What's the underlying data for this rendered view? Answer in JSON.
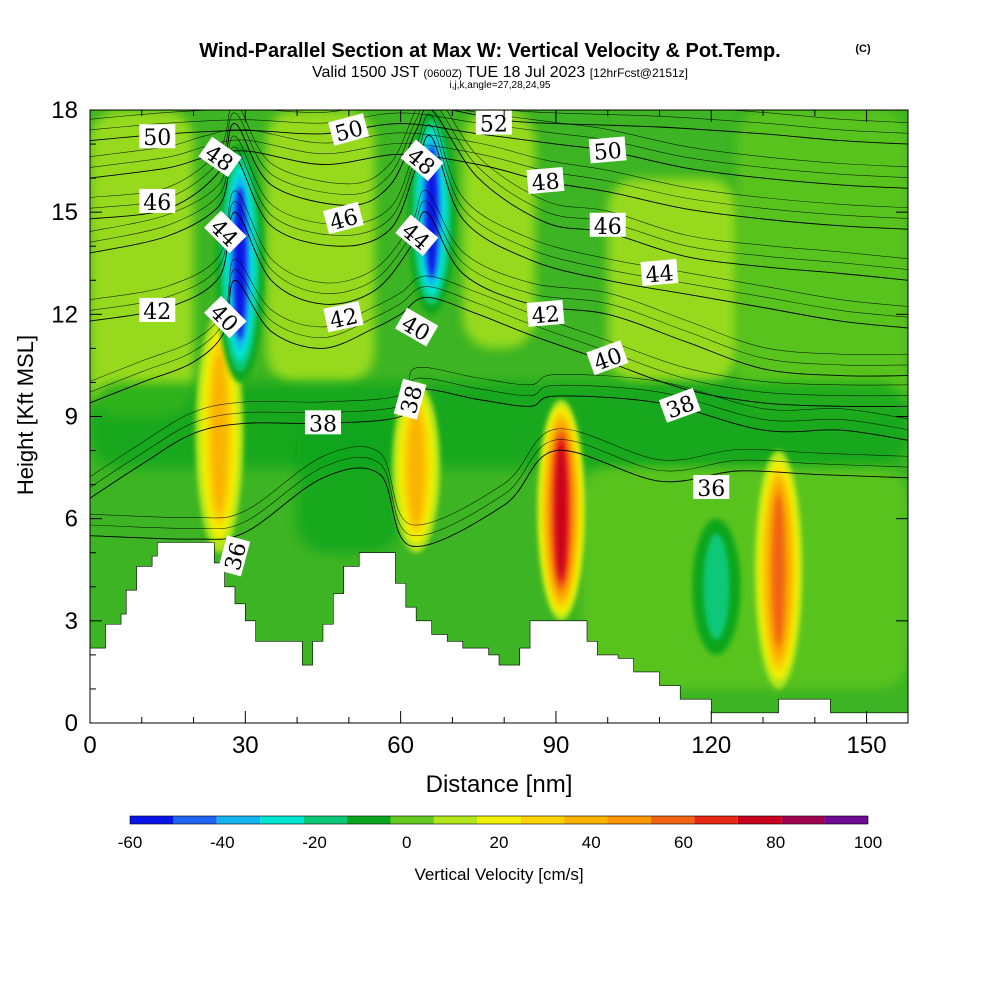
{
  "title": {
    "main": "Wind-Parallel Section at Max W: Vertical Velocity & Pot.Temp.",
    "copyright": "(C)",
    "valid_prefix": "Valid 1500 JST",
    "valid_utc": "(0600Z)",
    "valid_date": "TUE 18 Jul 2023",
    "forecast": "[12hrFcst@2151z]",
    "indices": "i,j,k,angle=27,28,24,95"
  },
  "chart_data": {
    "type": "heatmap",
    "xlabel": "Distance [nm]",
    "ylabel": "Height [Kft MSL]",
    "xlim": [
      0,
      158
    ],
    "ylim": [
      0,
      18
    ],
    "x_ticks": [
      0,
      30,
      60,
      90,
      120,
      150
    ],
    "y_ticks": [
      0,
      3,
      6,
      9,
      12,
      15,
      18
    ],
    "colorbar": {
      "label": "Vertical Velocity [cm/s]",
      "min": -60,
      "max": 100,
      "tick_labels": [
        "-60",
        "-40",
        "-20",
        "0",
        "20",
        "40",
        "60",
        "80",
        "100"
      ],
      "colors": [
        "#0a14e6",
        "#1e64f0",
        "#14b4f0",
        "#00e6d2",
        "#0ac878",
        "#0aa51e",
        "#64c81e",
        "#b4e61e",
        "#f0f000",
        "#fad200",
        "#fab400",
        "#fa9600",
        "#f06414",
        "#e62814",
        "#c8001e",
        "#a00050",
        "#6e0a96"
      ]
    },
    "vertical_velocity_features": [
      {
        "x": 25,
        "top": 12,
        "bottom": 5,
        "peak": 40
      },
      {
        "x": 29,
        "top": 17,
        "bottom": 10,
        "peak": -45
      },
      {
        "x": 63,
        "top": 10,
        "bottom": 5,
        "peak": 40
      },
      {
        "x": 66,
        "top": 18,
        "bottom": 12,
        "peak": -50
      },
      {
        "x": 91,
        "top": 9.5,
        "bottom": 3,
        "peak": 75
      },
      {
        "x": 133,
        "top": 8,
        "bottom": 1,
        "peak": 55
      },
      {
        "x": 121,
        "top": 6,
        "bottom": 2,
        "peak": -20
      }
    ],
    "terrain": [
      [
        0,
        2.2
      ],
      [
        3,
        2.9
      ],
      [
        6,
        3.2
      ],
      [
        7,
        3.9
      ],
      [
        9,
        4.6
      ],
      [
        12,
        4.9
      ],
      [
        13,
        5.3
      ],
      [
        22,
        5.3
      ],
      [
        24,
        4.7
      ],
      [
        26,
        4.0
      ],
      [
        28,
        3.5
      ],
      [
        30,
        3.0
      ],
      [
        32,
        2.4
      ],
      [
        39,
        2.4
      ],
      [
        41,
        1.7
      ],
      [
        43,
        2.4
      ],
      [
        45,
        2.9
      ],
      [
        47,
        3.8
      ],
      [
        49,
        4.6
      ],
      [
        52,
        5.0
      ],
      [
        58,
        5.0
      ],
      [
        59,
        4.1
      ],
      [
        61,
        3.4
      ],
      [
        63,
        3.0
      ],
      [
        66,
        2.6
      ],
      [
        69,
        2.4
      ],
      [
        72,
        2.2
      ],
      [
        77,
        2.0
      ],
      [
        79,
        1.7
      ],
      [
        83,
        2.2
      ],
      [
        85,
        3.0
      ],
      [
        93,
        3.0
      ],
      [
        96,
        2.4
      ],
      [
        98,
        2.0
      ],
      [
        102,
        1.9
      ],
      [
        105,
        1.5
      ],
      [
        110,
        1.1
      ],
      [
        114,
        0.7
      ],
      [
        120,
        0.3
      ],
      [
        132,
        0.3
      ],
      [
        133,
        0.7
      ],
      [
        142,
        0.7
      ],
      [
        143,
        0.3
      ],
      [
        158,
        0.3
      ]
    ],
    "theta_contours": [
      {
        "value": 36,
        "label": "36",
        "points": [
          [
            0,
            5.5
          ],
          [
            20,
            5.4
          ],
          [
            30,
            5.6
          ],
          [
            45,
            7.2
          ],
          [
            56,
            7.3
          ],
          [
            62,
            5.2
          ],
          [
            80,
            6.4
          ],
          [
            90,
            8.0
          ],
          [
            110,
            7.1
          ],
          [
            125,
            7.4
          ],
          [
            140,
            7.3
          ],
          [
            158,
            7.2
          ]
        ]
      },
      {
        "value": 38,
        "label": "38",
        "points": [
          [
            0,
            6.6
          ],
          [
            10,
            7.6
          ],
          [
            20,
            8.5
          ],
          [
            30,
            8.8
          ],
          [
            45,
            8.8
          ],
          [
            60,
            9.0
          ],
          [
            63,
            9.8
          ],
          [
            75,
            9.5
          ],
          [
            85,
            9.3
          ],
          [
            90,
            9.6
          ],
          [
            110,
            9.4
          ],
          [
            130,
            8.6
          ],
          [
            145,
            8.6
          ],
          [
            158,
            8.3
          ]
        ]
      },
      {
        "value": 40,
        "label": "40",
        "points": [
          [
            0,
            9.4
          ],
          [
            10,
            10.0
          ],
          [
            20,
            10.6
          ],
          [
            26,
            11.5
          ],
          [
            28,
            13.0
          ],
          [
            35,
            11.5
          ],
          [
            45,
            11.0
          ],
          [
            55,
            11.6
          ],
          [
            60,
            12.0
          ],
          [
            65,
            12.5
          ],
          [
            75,
            12.0
          ],
          [
            85,
            11.4
          ],
          [
            100,
            10.6
          ],
          [
            115,
            9.8
          ],
          [
            130,
            9.4
          ],
          [
            145,
            9.3
          ],
          [
            158,
            9.3
          ]
        ]
      },
      {
        "value": 42,
        "label": "42",
        "points": [
          [
            0,
            11.8
          ],
          [
            15,
            12.2
          ],
          [
            25,
            13.1
          ],
          [
            28,
            15.0
          ],
          [
            35,
            13.0
          ],
          [
            45,
            12.3
          ],
          [
            55,
            12.7
          ],
          [
            62,
            14.0
          ],
          [
            65,
            15.0
          ],
          [
            72,
            13.2
          ],
          [
            85,
            12.3
          ],
          [
            100,
            12.0
          ],
          [
            115,
            11.2
          ],
          [
            130,
            10.4
          ],
          [
            145,
            10.2
          ],
          [
            158,
            10.2
          ]
        ]
      },
      {
        "value": 44,
        "label": "44",
        "points": [
          [
            0,
            13.8
          ],
          [
            15,
            14.3
          ],
          [
            25,
            15.2
          ],
          [
            28,
            16.6
          ],
          [
            35,
            14.6
          ],
          [
            48,
            14.0
          ],
          [
            58,
            14.5
          ],
          [
            63,
            16.3
          ],
          [
            66,
            17.2
          ],
          [
            72,
            14.8
          ],
          [
            85,
            13.6
          ],
          [
            100,
            13.0
          ],
          [
            115,
            12.6
          ],
          [
            130,
            12.2
          ],
          [
            145,
            11.8
          ],
          [
            158,
            11.6
          ]
        ]
      },
      {
        "value": 46,
        "label": "46",
        "points": [
          [
            0,
            14.8
          ],
          [
            15,
            15.1
          ],
          [
            25,
            16.2
          ],
          [
            28,
            17.6
          ],
          [
            35,
            15.8
          ],
          [
            50,
            15.2
          ],
          [
            58,
            15.8
          ],
          [
            63,
            17.4
          ],
          [
            66,
            18.0
          ],
          [
            75,
            16.0
          ],
          [
            88,
            14.7
          ],
          [
            100,
            14.4
          ],
          [
            115,
            13.7
          ],
          [
            130,
            13.4
          ],
          [
            145,
            13.2
          ],
          [
            158,
            13.0
          ]
        ]
      },
      {
        "value": 48,
        "label": "48",
        "points": [
          [
            0,
            16.0
          ],
          [
            15,
            16.3
          ],
          [
            22,
            16.6
          ],
          [
            30,
            16.8
          ],
          [
            45,
            16.4
          ],
          [
            60,
            16.7
          ],
          [
            75,
            16.4
          ],
          [
            88,
            15.9
          ],
          [
            100,
            15.6
          ],
          [
            115,
            15.1
          ],
          [
            130,
            14.8
          ],
          [
            145,
            14.6
          ],
          [
            158,
            14.5
          ]
        ]
      },
      {
        "value": 50,
        "label": "50",
        "points": [
          [
            0,
            17.1
          ],
          [
            15,
            17.3
          ],
          [
            30,
            17.4
          ],
          [
            45,
            17.3
          ],
          [
            60,
            17.6
          ],
          [
            75,
            17.3
          ],
          [
            90,
            17.0
          ],
          [
            100,
            16.8
          ],
          [
            115,
            16.3
          ],
          [
            130,
            16.0
          ],
          [
            145,
            15.8
          ],
          [
            158,
            15.7
          ]
        ]
      },
      {
        "value": 52,
        "label": "52",
        "points": [
          [
            70,
            18.0
          ],
          [
            80,
            17.7
          ],
          [
            90,
            17.6
          ],
          [
            110,
            17.5
          ],
          [
            130,
            17.3
          ],
          [
            145,
            17.1
          ],
          [
            158,
            17.0
          ]
        ]
      }
    ],
    "contour_labels": [
      {
        "text": "50",
        "x": 13,
        "y": 17.2,
        "rot": 0
      },
      {
        "text": "48",
        "x": 25,
        "y": 16.6,
        "rot": 35
      },
      {
        "text": "46",
        "x": 13,
        "y": 15.3,
        "rot": 0
      },
      {
        "text": "44",
        "x": 26,
        "y": 14.4,
        "rot": 45
      },
      {
        "text": "42",
        "x": 13,
        "y": 12.1,
        "rot": 0
      },
      {
        "text": "40",
        "x": 26,
        "y": 11.9,
        "rot": 45
      },
      {
        "text": "36",
        "x": 28,
        "y": 4.9,
        "rot": -75
      },
      {
        "text": "50",
        "x": 50,
        "y": 17.4,
        "rot": -15
      },
      {
        "text": "46",
        "x": 49,
        "y": 14.8,
        "rot": -15
      },
      {
        "text": "42",
        "x": 49,
        "y": 11.9,
        "rot": -12
      },
      {
        "text": "38",
        "x": 45,
        "y": 8.8,
        "rot": 0
      },
      {
        "text": "48",
        "x": 64,
        "y": 16.5,
        "rot": 40
      },
      {
        "text": "44",
        "x": 63,
        "y": 14.3,
        "rot": 40
      },
      {
        "text": "40",
        "x": 63,
        "y": 11.6,
        "rot": 30
      },
      {
        "text": "38",
        "x": 62,
        "y": 9.5,
        "rot": -75
      },
      {
        "text": "52",
        "x": 78,
        "y": 17.6,
        "rot": 0
      },
      {
        "text": "48",
        "x": 88,
        "y": 15.9,
        "rot": -5
      },
      {
        "text": "42",
        "x": 88,
        "y": 12.0,
        "rot": -5
      },
      {
        "text": "50",
        "x": 100,
        "y": 16.8,
        "rot": -5
      },
      {
        "text": "46",
        "x": 100,
        "y": 14.6,
        "rot": 0
      },
      {
        "text": "40",
        "x": 100,
        "y": 10.7,
        "rot": -20
      },
      {
        "text": "44",
        "x": 110,
        "y": 13.2,
        "rot": -5
      },
      {
        "text": "38",
        "x": 114,
        "y": 9.3,
        "rot": -20
      },
      {
        "text": "36",
        "x": 120,
        "y": 6.9,
        "rot": 0
      }
    ]
  }
}
